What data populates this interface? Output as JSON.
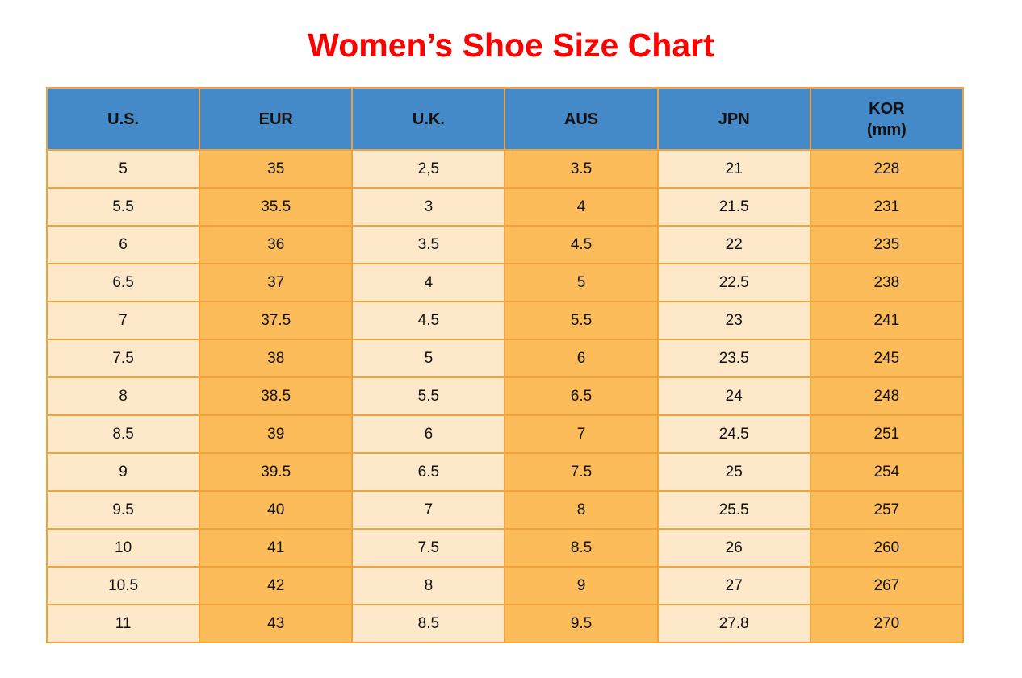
{
  "title": "Women’s Shoe Size Chart",
  "colors": {
    "title_red": "#FF0000",
    "header_blue": "#4489C8",
    "cell_cream": "#FDE8C9",
    "cell_orange": "#FBBC59",
    "border_orange": "#F0A33C",
    "text_black": "#111111"
  },
  "table": {
    "headers": [
      {
        "label": "U.S.",
        "sublabel": ""
      },
      {
        "label": "EUR",
        "sublabel": ""
      },
      {
        "label": "U.K.",
        "sublabel": ""
      },
      {
        "label": "AUS",
        "sublabel": ""
      },
      {
        "label": "JPN",
        "sublabel": ""
      },
      {
        "label": "KOR",
        "sublabel": "(mm)"
      }
    ]
  },
  "chart_data": {
    "type": "table",
    "title": "Women’s Shoe Size Chart",
    "columns": [
      "U.S.",
      "EUR",
      "U.K.",
      "AUS",
      "JPN",
      "KOR (mm)"
    ],
    "rows": [
      [
        "5",
        "35",
        "2,5",
        "3.5",
        "21",
        "228"
      ],
      [
        "5.5",
        "35.5",
        "3",
        "4",
        "21.5",
        "231"
      ],
      [
        "6",
        "36",
        "3.5",
        "4.5",
        "22",
        "235"
      ],
      [
        "6.5",
        "37",
        "4",
        "5",
        "22.5",
        "238"
      ],
      [
        "7",
        "37.5",
        "4.5",
        "5.5",
        "23",
        "241"
      ],
      [
        "7.5",
        "38",
        "5",
        "6",
        "23.5",
        "245"
      ],
      [
        "8",
        "38.5",
        "5.5",
        "6.5",
        "24",
        "248"
      ],
      [
        "8.5",
        "39",
        "6",
        "7",
        "24.5",
        "251"
      ],
      [
        "9",
        "39.5",
        "6.5",
        "7.5",
        "25",
        "254"
      ],
      [
        "9.5",
        "40",
        "7",
        "8",
        "25.5",
        "257"
      ],
      [
        "10",
        "41",
        "7.5",
        "8.5",
        "26",
        "260"
      ],
      [
        "10.5",
        "42",
        "8",
        "9",
        "27",
        "267"
      ],
      [
        "11",
        "43",
        "8.5",
        "9.5",
        "27.8",
        "270"
      ]
    ]
  }
}
